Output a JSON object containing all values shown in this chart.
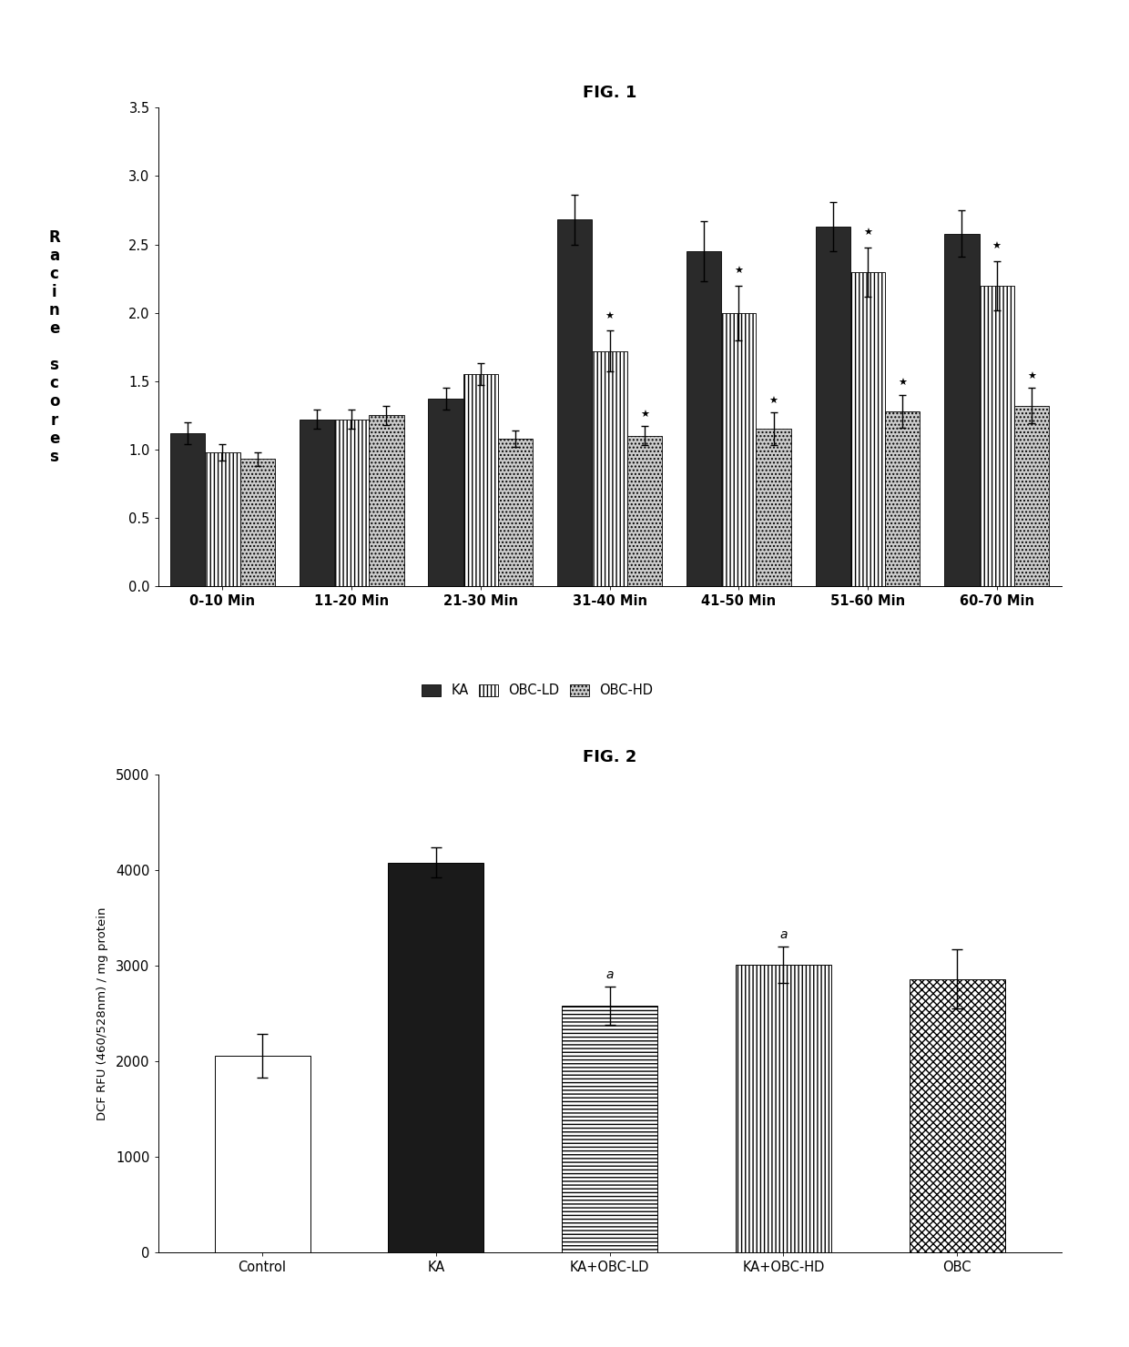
{
  "fig1": {
    "title": "FIG. 1",
    "ylim": [
      0,
      3.5
    ],
    "yticks": [
      0,
      0.5,
      1.0,
      1.5,
      2.0,
      2.5,
      3.0,
      3.5
    ],
    "categories": [
      "0-10 Min",
      "11-20 Min",
      "21-30 Min",
      "31-40 Min",
      "41-50 Min",
      "51-60 Min",
      "60-70 Min"
    ],
    "KA": [
      1.12,
      1.22,
      1.37,
      2.68,
      2.45,
      2.63,
      2.58
    ],
    "OBC_LD": [
      0.98,
      1.22,
      1.55,
      1.72,
      2.0,
      2.3,
      2.2
    ],
    "OBC_HD": [
      0.93,
      1.25,
      1.08,
      1.1,
      1.15,
      1.28,
      1.32
    ],
    "KA_err": [
      0.08,
      0.07,
      0.08,
      0.18,
      0.22,
      0.18,
      0.17
    ],
    "OBC_LD_err": [
      0.06,
      0.07,
      0.08,
      0.15,
      0.2,
      0.18,
      0.18
    ],
    "OBC_HD_err": [
      0.05,
      0.07,
      0.06,
      0.07,
      0.12,
      0.12,
      0.13
    ],
    "star_LD_idx": [
      3,
      4,
      5,
      6
    ],
    "star_HD_idx": [
      3,
      4,
      5,
      6
    ],
    "bar_width": 0.27,
    "KA_color": "#2a2a2a",
    "LD_color": "#ffffff",
    "HD_color": "#cccccc"
  },
  "fig2": {
    "title": "FIG. 2",
    "ylabel": "DCF RFU (460/528nm) / mg protein",
    "ylim": [
      0,
      5000
    ],
    "yticks": [
      0,
      1000,
      2000,
      3000,
      4000,
      5000
    ],
    "categories": [
      "Control",
      "KA",
      "KA+OBC-LD",
      "KA+OBC-HD",
      "OBC"
    ],
    "values": [
      2060,
      4080,
      2580,
      3010,
      2860
    ],
    "errors": [
      230,
      160,
      200,
      190,
      310
    ],
    "ann_idx": [
      2,
      3
    ],
    "ann_labels": [
      "a",
      "a"
    ]
  }
}
